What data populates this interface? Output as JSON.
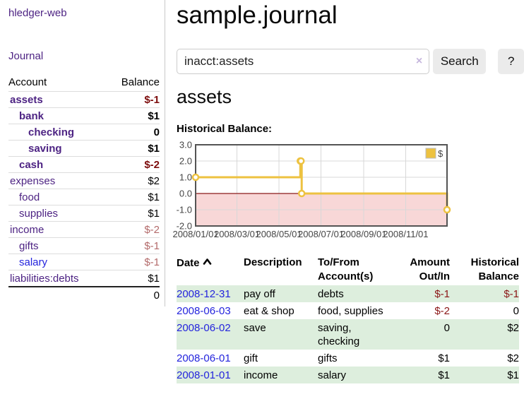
{
  "app": {
    "title": "hledger-web",
    "nav_journal_label": "Journal"
  },
  "sidebar": {
    "header": {
      "account": "Account",
      "balance": "Balance"
    },
    "accounts": [
      {
        "name": "assets",
        "balance": "$-1",
        "level": 1,
        "bold": true,
        "negative": "strong"
      },
      {
        "name": "bank",
        "balance": "$1",
        "level": 2,
        "bold": true,
        "negative": null
      },
      {
        "name": "checking",
        "balance": "0",
        "level": 3,
        "bold": true,
        "negative": null
      },
      {
        "name": "saving",
        "balance": "$1",
        "level": 3,
        "bold": true,
        "negative": null
      },
      {
        "name": "cash",
        "balance": "$-2",
        "level": 2,
        "bold": true,
        "negative": "strong"
      },
      {
        "name": "expenses",
        "balance": "$2",
        "level": 1,
        "bold": false,
        "negative": null
      },
      {
        "name": "food",
        "balance": "$1",
        "level": 2,
        "bold": false,
        "negative": null
      },
      {
        "name": "supplies",
        "balance": "$1",
        "level": 2,
        "bold": false,
        "negative": null
      },
      {
        "name": "income",
        "balance": "$-2",
        "level": 1,
        "bold": false,
        "negative": "faded"
      },
      {
        "name": "gifts",
        "balance": "$-1",
        "level": 2,
        "bold": false,
        "negative": "faded"
      },
      {
        "name": "salary",
        "balance": "$-1",
        "level": 2,
        "bold": false,
        "negative": "faded",
        "link_color": "blue"
      },
      {
        "name": "liabilities:debts",
        "balance": "$1",
        "level": 1,
        "bold": false,
        "negative": null
      }
    ],
    "total": "0"
  },
  "header": {
    "title": "sample.journal"
  },
  "search": {
    "value": "inacct:assets",
    "clear_icon": "×",
    "button_label": "Search",
    "help_button_label": "?"
  },
  "account_page": {
    "heading": "assets"
  },
  "chart_data": {
    "type": "line",
    "style": "step",
    "title": "Historical Balance:",
    "series": [
      {
        "name": "$",
        "color": "#edc240",
        "points": [
          [
            "2008-01-01",
            1
          ],
          [
            "2008-06-01",
            2
          ],
          [
            "2008-06-02",
            2
          ],
          [
            "2008-06-03",
            0
          ],
          [
            "2008-12-31",
            -1
          ]
        ]
      }
    ],
    "x_range": [
      "2008-01-01",
      "2008-12-31"
    ],
    "x_tick_labels": [
      "2008/01/01",
      "2008/03/01",
      "2008/05/01",
      "2008/07/01",
      "2008/09/01",
      "2008/11/01"
    ],
    "y_ticks": [
      3.0,
      2.0,
      1.0,
      0.0,
      -1.0,
      -2.0
    ],
    "ylim": [
      -2,
      3
    ],
    "grid": true,
    "grid_color": "#d8d8d8",
    "border_color": "#545454",
    "negative_region_color": "#f8d7d7",
    "zero_line_color": "#8b1a1a",
    "legend": {
      "position": "top-right",
      "label": "$"
    }
  },
  "register": {
    "columns": [
      {
        "label": "Date"
      },
      {
        "label": "Description"
      },
      {
        "label": "To/From Account(s)"
      },
      {
        "label": "Amount Out/In"
      },
      {
        "label": "Historical Balance"
      }
    ],
    "sort_icon": "chevron-up",
    "rows": [
      {
        "date": "2008-12-31",
        "description": "pay off",
        "accounts": "debts",
        "amount": "$-1",
        "amount_negative": true,
        "balance": "$-1",
        "balance_negative": true
      },
      {
        "date": "2008-06-03",
        "description": "eat & shop",
        "accounts": "food, supplies",
        "amount": "$-2",
        "amount_negative": true,
        "balance": "0",
        "balance_negative": false
      },
      {
        "date": "2008-06-02",
        "description": "save",
        "accounts": "saving, checking",
        "amount": "0",
        "amount_negative": false,
        "balance": "$2",
        "balance_negative": false
      },
      {
        "date": "2008-06-01",
        "description": "gift",
        "accounts": "gifts",
        "amount": "$1",
        "amount_negative": false,
        "balance": "$2",
        "balance_negative": false
      },
      {
        "date": "2008-01-01",
        "description": "income",
        "accounts": "salary",
        "amount": "$1",
        "amount_negative": false,
        "balance": "$1",
        "balance_negative": false
      }
    ]
  },
  "colors": {
    "link_purple": "#4d2383",
    "link_blue": "#2424dd",
    "negative_strong": "#7d0d0d",
    "negative_faded": "#b36a6a",
    "register_negative": "#8b1717",
    "row_stripe_green": "#ddeedd",
    "chart_line": "#edc240",
    "chart_negative_region": "#f8d7d7",
    "chart_zero_line": "#8b1a1a"
  }
}
